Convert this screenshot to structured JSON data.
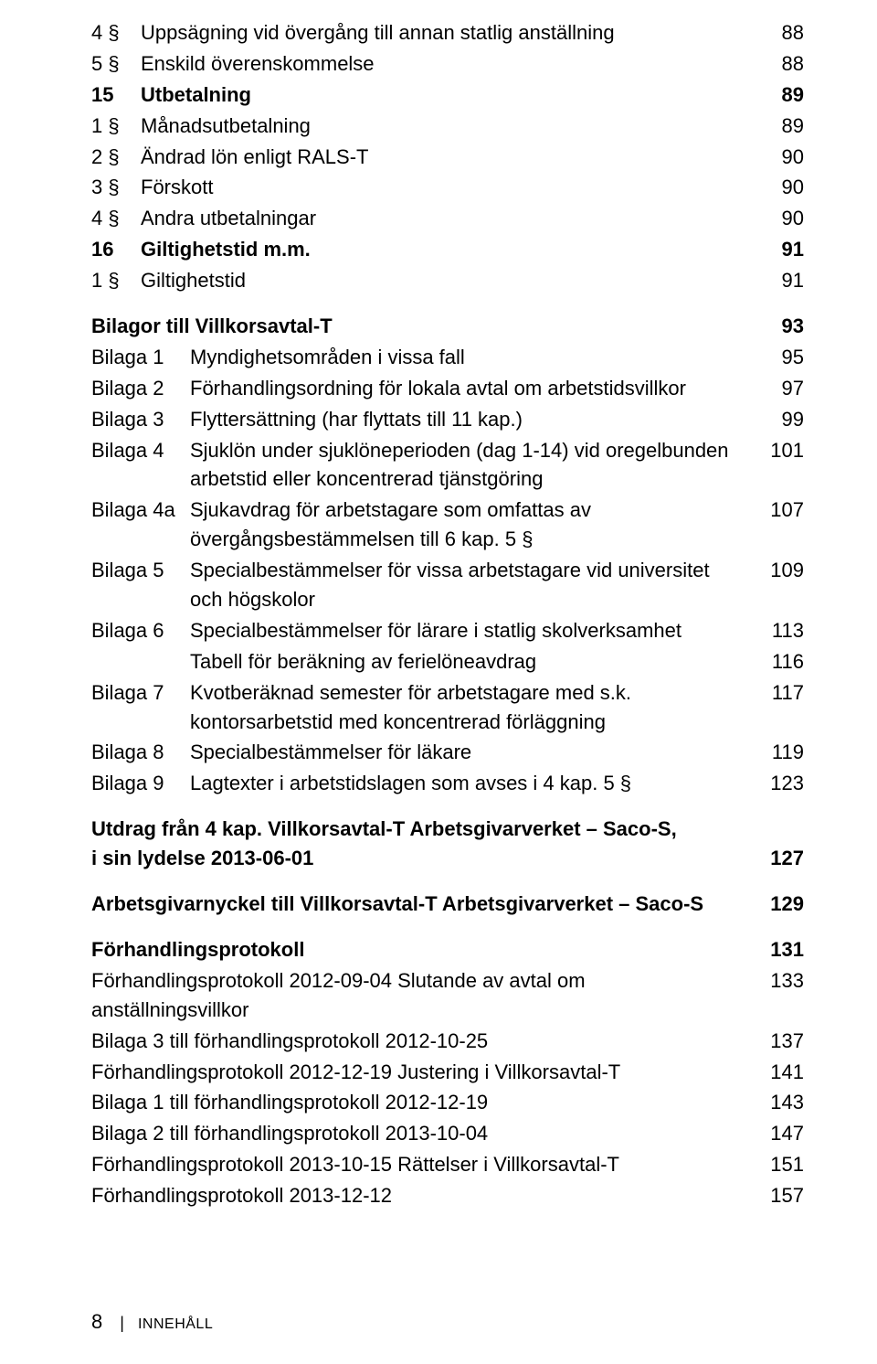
{
  "sections": {
    "block1": [
      {
        "num": "4 §",
        "title": "Uppsägning vid övergång till annan statlig anställning",
        "page": "88"
      },
      {
        "num": "5 §",
        "title": "Enskild överenskommelse",
        "page": "88"
      },
      {
        "num": "15",
        "title": "Utbetalning",
        "page": "89",
        "bold": true
      },
      {
        "num": "1 §",
        "title": "Månadsutbetalning",
        "page": "89"
      },
      {
        "num": "2 §",
        "title": "Ändrad lön enligt RALS-T",
        "page": "90"
      },
      {
        "num": "3 §",
        "title": "Förskott",
        "page": "90"
      },
      {
        "num": "4 §",
        "title": "Andra utbetalningar",
        "page": "90"
      },
      {
        "num": "16",
        "title": "Giltighetstid m.m.",
        "page": "91",
        "bold": true
      },
      {
        "num": "1 §",
        "title": "Giltighetstid",
        "page": "91"
      }
    ],
    "bilagor_header": {
      "title": "Bilagor till Villkorsavtal-T",
      "page": "93"
    },
    "bilagor": [
      {
        "num": "Bilaga 1",
        "title": "Myndighetsområden i vissa fall",
        "page": "95"
      },
      {
        "num": "Bilaga 2",
        "title": "Förhandlingsordning för lokala avtal om arbetstidsvillkor",
        "page": "97"
      },
      {
        "num": "Bilaga 3",
        "title": "Flyttersättning (har flyttats till 11 kap.)",
        "page": "99"
      },
      {
        "num": "Bilaga 4",
        "title": "Sjuklön under sjuklöneperioden (dag 1-14) vid oregelbunden arbetstid eller koncentrerad tjänstgöring",
        "page": "101"
      },
      {
        "num": "Bilaga 4a",
        "title": "Sjukavdrag för arbetstagare som omfattas av övergångsbestämmelsen till 6 kap. 5 §",
        "page": "107"
      },
      {
        "num": "Bilaga 5",
        "title": "Specialbestämmelser för vissa arbetstagare vid universitet och högskolor",
        "page": "109"
      },
      {
        "num": "Bilaga 6",
        "title": "Specialbestämmelser för lärare i statlig skolverksamhet",
        "page": "113"
      },
      {
        "num": "",
        "title": "Tabell för beräkning av ferielöneavdrag",
        "page": "116"
      },
      {
        "num": "Bilaga 7",
        "title": "Kvotberäknad semester för arbetstagare med s.k. kontorsarbetstid med koncentrerad förläggning",
        "page": "117"
      },
      {
        "num": "Bilaga 8",
        "title": "Specialbestämmelser för läkare",
        "page": "119"
      },
      {
        "num": "Bilaga 9",
        "title": "Lagtexter i arbetstidslagen som avses i 4 kap. 5 §",
        "page": "123"
      }
    ],
    "utdrag": {
      "line1": "Utdrag från 4 kap. Villkorsavtal-T Arbetsgivarverket – Saco-S,",
      "line2": "i sin lydelse 2013-06-01",
      "page": "127"
    },
    "arbetsgivarnyckel": {
      "title": "Arbetsgivarnyckel till Villkorsavtal-T Arbetsgivarverket – Saco-S",
      "page": "129"
    },
    "forhand_header": {
      "title": "Förhandlingsprotokoll",
      "page": "131"
    },
    "forhand": [
      {
        "title": "Förhandlingsprotokoll 2012-09-04 Slutande av avtal om anställningsvillkor",
        "page": "133"
      },
      {
        "title": "Bilaga 3 till förhandlingsprotokoll 2012-10-25",
        "page": "137"
      },
      {
        "title": "Förhandlingsprotokoll 2012-12-19 Justering i Villkorsavtal-T",
        "page": "141"
      },
      {
        "title": "Bilaga 1 till förhandlingsprotokoll 2012-12-19",
        "page": "143"
      },
      {
        "title": "Bilaga 2 till förhandlingsprotokoll 2013-10-04",
        "page": "147"
      },
      {
        "title": "Förhandlingsprotokoll 2013-10-15 Rättelser i Villkorsavtal-T",
        "page": "151"
      },
      {
        "title": "Förhandlingsprotokoll 2013-12-12",
        "page": "157"
      }
    ]
  },
  "footer": {
    "page_number": "8",
    "label": "INNEHÅLL"
  }
}
